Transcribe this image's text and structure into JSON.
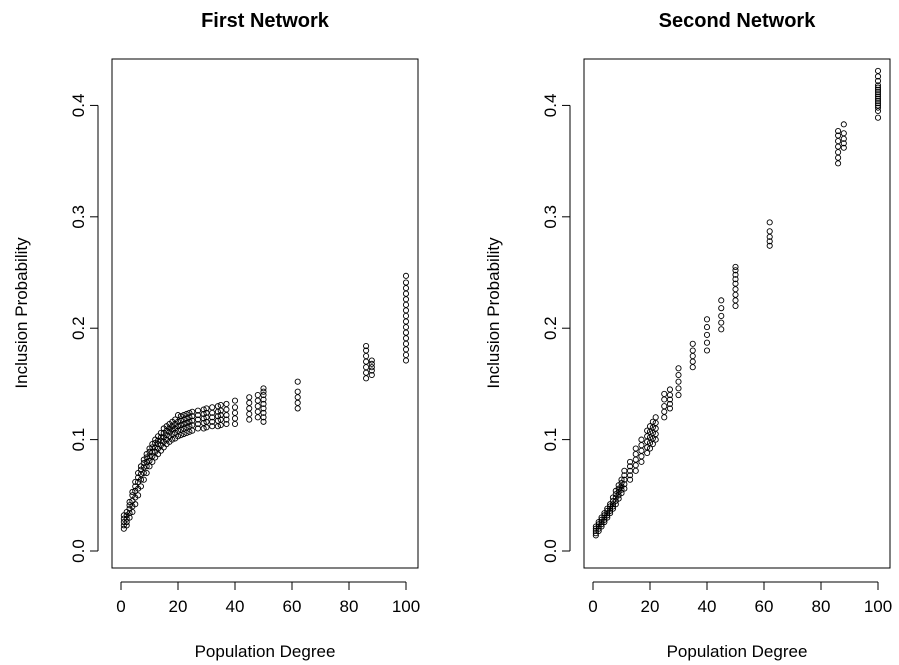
{
  "chart_data": [
    {
      "type": "scatter",
      "title": "First Network",
      "xlabel": "Population Degree",
      "ylabel": "Inclusion Probability",
      "xlim": [
        0,
        100
      ],
      "ylim": [
        0,
        0.43
      ],
      "xticks": [
        0,
        20,
        40,
        60,
        80,
        100
      ],
      "xtick_labels": [
        "0",
        "20",
        "40",
        "60",
        "80",
        "100"
      ],
      "yticks": [
        0.0,
        0.1,
        0.2,
        0.3,
        0.4
      ],
      "ytick_labels": [
        "0.0",
        "0.1",
        "0.2",
        "0.3",
        "0.4"
      ],
      "grid": false,
      "series": [
        {
          "x": [
            1,
            1,
            1,
            1,
            1,
            2,
            2,
            2,
            2,
            2,
            3,
            3,
            3,
            3,
            3,
            4,
            4,
            4,
            4,
            4,
            5,
            5,
            5,
            5,
            5,
            6,
            6,
            6,
            6,
            6,
            7,
            7,
            7,
            7,
            7,
            8,
            8,
            8,
            8,
            8,
            9,
            9,
            9,
            9,
            9,
            10,
            10,
            10,
            10,
            10,
            11,
            11,
            11,
            11,
            11,
            12,
            12,
            12,
            12,
            12,
            13,
            13,
            13,
            13,
            13,
            14,
            14,
            14,
            14,
            14,
            15,
            15,
            15,
            15,
            15,
            16,
            16,
            16,
            16,
            16,
            17,
            17,
            17,
            17,
            17,
            18,
            18,
            18,
            18,
            18,
            19,
            19,
            19,
            19,
            19,
            20,
            20,
            20,
            20,
            20,
            21,
            21,
            21,
            21,
            21,
            22,
            22,
            22,
            22,
            22,
            23,
            23,
            23,
            23,
            23,
            24,
            24,
            24,
            24,
            24,
            25,
            25,
            25,
            25,
            25,
            27,
            27,
            27,
            27,
            27,
            29,
            29,
            29,
            29,
            29,
            30,
            30,
            30,
            30,
            30,
            32,
            32,
            32,
            32,
            32,
            34,
            34,
            34,
            34,
            34,
            35,
            35,
            35,
            35,
            35,
            37,
            37,
            37,
            37,
            37,
            40,
            40,
            40,
            40,
            40,
            45,
            45,
            45,
            45,
            45,
            48,
            48,
            48,
            48,
            48,
            50,
            50,
            50,
            50,
            50,
            50,
            50,
            50,
            50,
            62,
            62,
            62,
            62,
            62,
            86,
            86,
            86,
            86,
            86,
            86,
            86,
            88,
            88,
            88,
            88,
            88,
            100,
            100,
            100,
            100,
            100,
            100,
            100,
            100,
            100,
            100,
            100,
            100,
            100,
            100,
            100,
            100
          ],
          "y": [
            0.02,
            0.023,
            0.026,
            0.029,
            0.032,
            0.023,
            0.026,
            0.029,
            0.032,
            0.035,
            0.03,
            0.034,
            0.038,
            0.041,
            0.044,
            0.035,
            0.04,
            0.045,
            0.05,
            0.053,
            0.042,
            0.048,
            0.054,
            0.058,
            0.062,
            0.05,
            0.056,
            0.062,
            0.066,
            0.07,
            0.058,
            0.064,
            0.069,
            0.073,
            0.076,
            0.064,
            0.07,
            0.075,
            0.079,
            0.082,
            0.07,
            0.076,
            0.08,
            0.084,
            0.087,
            0.076,
            0.081,
            0.085,
            0.089,
            0.092,
            0.08,
            0.085,
            0.089,
            0.093,
            0.096,
            0.084,
            0.089,
            0.093,
            0.097,
            0.1,
            0.087,
            0.092,
            0.096,
            0.099,
            0.103,
            0.09,
            0.095,
            0.099,
            0.102,
            0.106,
            0.093,
            0.098,
            0.102,
            0.106,
            0.11,
            0.096,
            0.1,
            0.104,
            0.108,
            0.112,
            0.098,
            0.103,
            0.107,
            0.11,
            0.114,
            0.1,
            0.105,
            0.109,
            0.112,
            0.116,
            0.101,
            0.106,
            0.11,
            0.114,
            0.118,
            0.103,
            0.108,
            0.112,
            0.116,
            0.122,
            0.104,
            0.109,
            0.113,
            0.117,
            0.121,
            0.105,
            0.11,
            0.114,
            0.118,
            0.122,
            0.106,
            0.111,
            0.115,
            0.119,
            0.123,
            0.107,
            0.112,
            0.116,
            0.12,
            0.124,
            0.108,
            0.113,
            0.117,
            0.121,
            0.125,
            0.11,
            0.114,
            0.118,
            0.122,
            0.126,
            0.11,
            0.115,
            0.119,
            0.123,
            0.127,
            0.111,
            0.116,
            0.12,
            0.124,
            0.128,
            0.112,
            0.116,
            0.12,
            0.124,
            0.129,
            0.112,
            0.117,
            0.121,
            0.125,
            0.13,
            0.113,
            0.118,
            0.122,
            0.126,
            0.131,
            0.114,
            0.118,
            0.122,
            0.127,
            0.132,
            0.114,
            0.119,
            0.124,
            0.129,
            0.135,
            0.118,
            0.123,
            0.128,
            0.133,
            0.138,
            0.12,
            0.125,
            0.13,
            0.135,
            0.14,
            0.116,
            0.12,
            0.124,
            0.128,
            0.132,
            0.136,
            0.14,
            0.143,
            0.146,
            0.128,
            0.133,
            0.138,
            0.143,
            0.152,
            0.155,
            0.16,
            0.165,
            0.17,
            0.175,
            0.18,
            0.184,
            0.158,
            0.162,
            0.165,
            0.168,
            0.171,
            0.171,
            0.176,
            0.181,
            0.186,
            0.191,
            0.196,
            0.201,
            0.206,
            0.211,
            0.216,
            0.221,
            0.226,
            0.231,
            0.236,
            0.241,
            0.247
          ]
        }
      ]
    },
    {
      "type": "scatter",
      "title": "Second Network",
      "xlabel": "Population Degree",
      "ylabel": "Inclusion Probability",
      "xlim": [
        0,
        100
      ],
      "ylim": [
        0,
        0.43
      ],
      "xticks": [
        0,
        20,
        40,
        60,
        80,
        100
      ],
      "xtick_labels": [
        "0",
        "20",
        "40",
        "60",
        "80",
        "100"
      ],
      "yticks": [
        0.0,
        0.1,
        0.2,
        0.3,
        0.4
      ],
      "ytick_labels": [
        "0.0",
        "0.1",
        "0.2",
        "0.3",
        "0.4"
      ],
      "grid": false,
      "series": [
        {
          "x": [
            1,
            1,
            1,
            1,
            1,
            2,
            2,
            2,
            2,
            2,
            3,
            3,
            3,
            3,
            3,
            4,
            4,
            4,
            4,
            4,
            5,
            5,
            5,
            5,
            5,
            6,
            6,
            6,
            6,
            6,
            7,
            7,
            7,
            7,
            7,
            8,
            8,
            8,
            8,
            8,
            9,
            9,
            9,
            9,
            9,
            10,
            10,
            10,
            10,
            10,
            11,
            11,
            11,
            11,
            11,
            13,
            13,
            13,
            13,
            13,
            15,
            15,
            15,
            15,
            15,
            17,
            17,
            17,
            17,
            17,
            19,
            19,
            19,
            19,
            19,
            20,
            20,
            20,
            20,
            20,
            21,
            21,
            21,
            21,
            21,
            22,
            22,
            22,
            22,
            22,
            25,
            25,
            25,
            25,
            25,
            27,
            27,
            27,
            27,
            27,
            30,
            30,
            30,
            30,
            30,
            35,
            35,
            35,
            35,
            35,
            40,
            40,
            40,
            40,
            40,
            45,
            45,
            45,
            45,
            45,
            50,
            50,
            50,
            50,
            50,
            50,
            50,
            50,
            50,
            62,
            62,
            62,
            62,
            62,
            86,
            86,
            86,
            86,
            86,
            86,
            86,
            88,
            88,
            88,
            88,
            88,
            100,
            100,
            100,
            100,
            100,
            100,
            100,
            100,
            100,
            100,
            100,
            100,
            100,
            100,
            100,
            100
          ],
          "y": [
            0.014,
            0.016,
            0.018,
            0.02,
            0.022,
            0.018,
            0.02,
            0.022,
            0.024,
            0.026,
            0.022,
            0.024,
            0.026,
            0.028,
            0.03,
            0.026,
            0.028,
            0.03,
            0.032,
            0.034,
            0.03,
            0.032,
            0.034,
            0.036,
            0.038,
            0.034,
            0.036,
            0.038,
            0.04,
            0.042,
            0.038,
            0.04,
            0.042,
            0.045,
            0.048,
            0.042,
            0.045,
            0.048,
            0.051,
            0.054,
            0.047,
            0.05,
            0.053,
            0.056,
            0.059,
            0.052,
            0.055,
            0.058,
            0.061,
            0.064,
            0.056,
            0.06,
            0.064,
            0.068,
            0.072,
            0.064,
            0.068,
            0.072,
            0.076,
            0.08,
            0.072,
            0.077,
            0.082,
            0.087,
            0.092,
            0.08,
            0.085,
            0.09,
            0.095,
            0.1,
            0.088,
            0.093,
            0.098,
            0.103,
            0.108,
            0.092,
            0.097,
            0.102,
            0.107,
            0.112,
            0.096,
            0.101,
            0.106,
            0.111,
            0.116,
            0.1,
            0.105,
            0.11,
            0.115,
            0.12,
            0.12,
            0.125,
            0.13,
            0.136,
            0.141,
            0.128,
            0.132,
            0.136,
            0.14,
            0.145,
            0.14,
            0.146,
            0.152,
            0.158,
            0.164,
            0.165,
            0.17,
            0.175,
            0.18,
            0.186,
            0.18,
            0.187,
            0.194,
            0.201,
            0.208,
            0.199,
            0.205,
            0.211,
            0.218,
            0.225,
            0.22,
            0.225,
            0.23,
            0.235,
            0.24,
            0.244,
            0.248,
            0.252,
            0.255,
            0.274,
            0.278,
            0.282,
            0.287,
            0.295,
            0.348,
            0.353,
            0.358,
            0.363,
            0.368,
            0.373,
            0.377,
            0.362,
            0.366,
            0.37,
            0.375,
            0.383,
            0.389,
            0.395,
            0.398,
            0.4,
            0.402,
            0.404,
            0.406,
            0.408,
            0.41,
            0.412,
            0.414,
            0.416,
            0.418,
            0.422,
            0.426,
            0.431
          ]
        }
      ]
    }
  ]
}
